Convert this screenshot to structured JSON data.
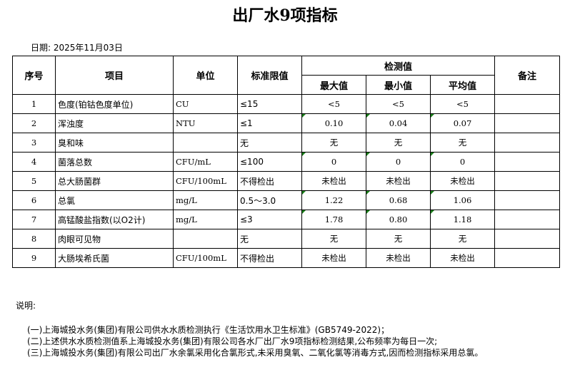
{
  "title": "出厂水9项指标",
  "date": "日期: 2025年11月03日",
  "headers": {
    "no": "序号",
    "item": "项目",
    "unit": "单位",
    "limit": "标准限值",
    "detect": "检测值",
    "max": "最大值",
    "min": "最小值",
    "avg": "平均值",
    "remark": "备注"
  },
  "rows": [
    {
      "no": "1",
      "item": "色度(铂钴色度单位)",
      "unit": "CU",
      "limit": "≤15",
      "max": "<5",
      "min": "<5",
      "avg": "<5",
      "flag": false
    },
    {
      "no": "2",
      "item": "浑浊度",
      "unit": "NTU",
      "limit": "≤1",
      "max": "0.10",
      "min": "0.04",
      "avg": "0.07",
      "flag": true
    },
    {
      "no": "3",
      "item": "臭和味",
      "unit": "",
      "limit": "无",
      "max": "无",
      "min": "无",
      "avg": "无",
      "flag": false
    },
    {
      "no": "4",
      "item": "菌落总数",
      "unit": "CFU/mL",
      "limit": "≤100",
      "max": "0",
      "min": "0",
      "avg": "0",
      "flag": true
    },
    {
      "no": "5",
      "item": "总大肠菌群",
      "unit": "CFU/100mL",
      "limit": "不得检出",
      "max": "未检出",
      "min": "未检出",
      "avg": "未检出",
      "flag": false
    },
    {
      "no": "6",
      "item": "总氯",
      "unit": "mg/L",
      "limit": "0.5～3.0",
      "max": "1.22",
      "min": "0.68",
      "avg": "1.06",
      "flag": true
    },
    {
      "no": "7",
      "item": "高锰酸盐指数(以O2计)",
      "unit": "mg/L",
      "limit": "≤3",
      "max": "1.78",
      "min": "0.80",
      "avg": "1.18",
      "flag": true
    },
    {
      "no": "8",
      "item": "肉眼可见物",
      "unit": "",
      "limit": "无",
      "max": "无",
      "min": "无",
      "avg": "无",
      "flag": false
    },
    {
      "no": "9",
      "item": "大肠埃希氏菌",
      "unit": "CFU/100mL",
      "limit": "不得检出",
      "max": "未检出",
      "min": "未检出",
      "avg": "未检出",
      "flag": false
    }
  ],
  "note_heading": "说明:",
  "notes": [
    "(一)上海城投水务(集团)有限公司供水水质检测执行《生活饮用水卫生标准》(GB5749-2022)；",
    "(二)上述供水水质检测值系上海城投水务(集团)有限公司各水厂出厂水9项指标检测结果,公布频率为每日一次;",
    "(三)上海城投水务(集团)有限公司出厂水余氯采用化合氯形式,未采用臭氧、二氧化氯等消毒方式,因而检测指标采用总氯。"
  ],
  "colors": {
    "marker": "#1a7f1a"
  }
}
